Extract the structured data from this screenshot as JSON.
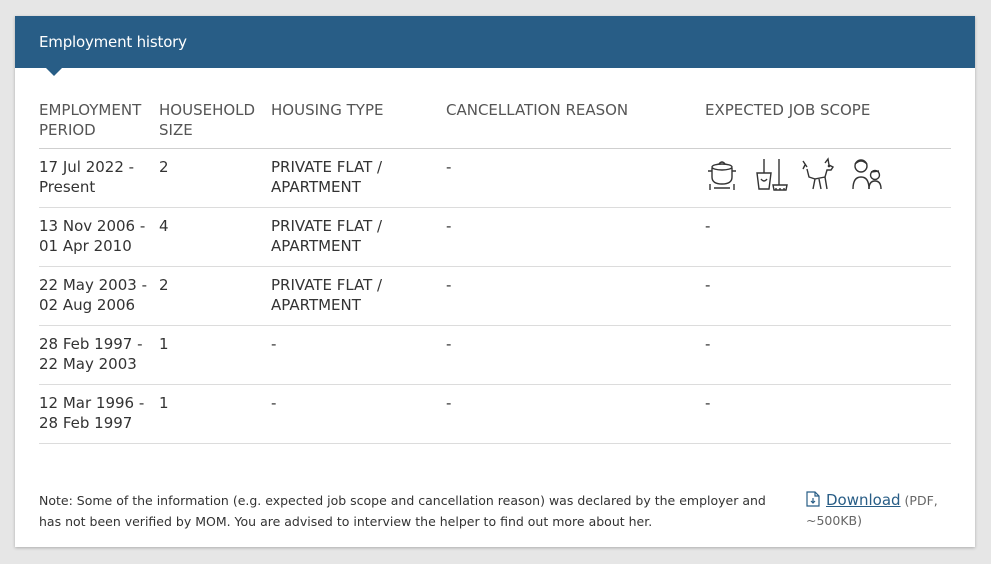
{
  "card": {
    "title": "Employment history"
  },
  "table": {
    "headers": {
      "period": "EMPLOYMENT PERIOD",
      "size": "HOUSEHOLD SIZE",
      "housing": "HOUSING TYPE",
      "cancel": "CANCELLATION REASON",
      "scope": "EXPECTED JOB SCOPE"
    },
    "rows": [
      {
        "period": "17 Jul 2022 - Present",
        "size": "2",
        "housing": "PRIVATE FLAT / APARTMENT",
        "cancel": "-",
        "scope": ""
      },
      {
        "period": "13 Nov 2006 - 01 Apr 2010",
        "size": "4",
        "housing": "PRIVATE FLAT / APARTMENT",
        "cancel": "-",
        "scope": "-"
      },
      {
        "period": "22 May 2003 - 02 Aug 2006",
        "size": "2",
        "housing": "PRIVATE FLAT / APARTMENT",
        "cancel": "-",
        "scope": "-"
      },
      {
        "period": "28 Feb 1997 - 22 May 2003",
        "size": "1",
        "housing": "-",
        "cancel": "-",
        "scope": "-"
      },
      {
        "period": "12 Mar 1996 - 28 Feb 1997",
        "size": "1",
        "housing": "-",
        "cancel": "-",
        "scope": "-"
      }
    ],
    "scope_icons": [
      "cooking-icon",
      "cleaning-icon",
      "pet-care-icon",
      "child-care-icon"
    ]
  },
  "note": {
    "text": "Note: Some of the information (e.g. expected job scope and cancellation reason) was declared by the employer and has not been verified by MOM. You are advised to interview the helper to find out more about her."
  },
  "download": {
    "label": "Download",
    "meta": "(PDF, ~500KB)"
  },
  "colors": {
    "header_bg": "#285d86",
    "link": "#285d86"
  }
}
